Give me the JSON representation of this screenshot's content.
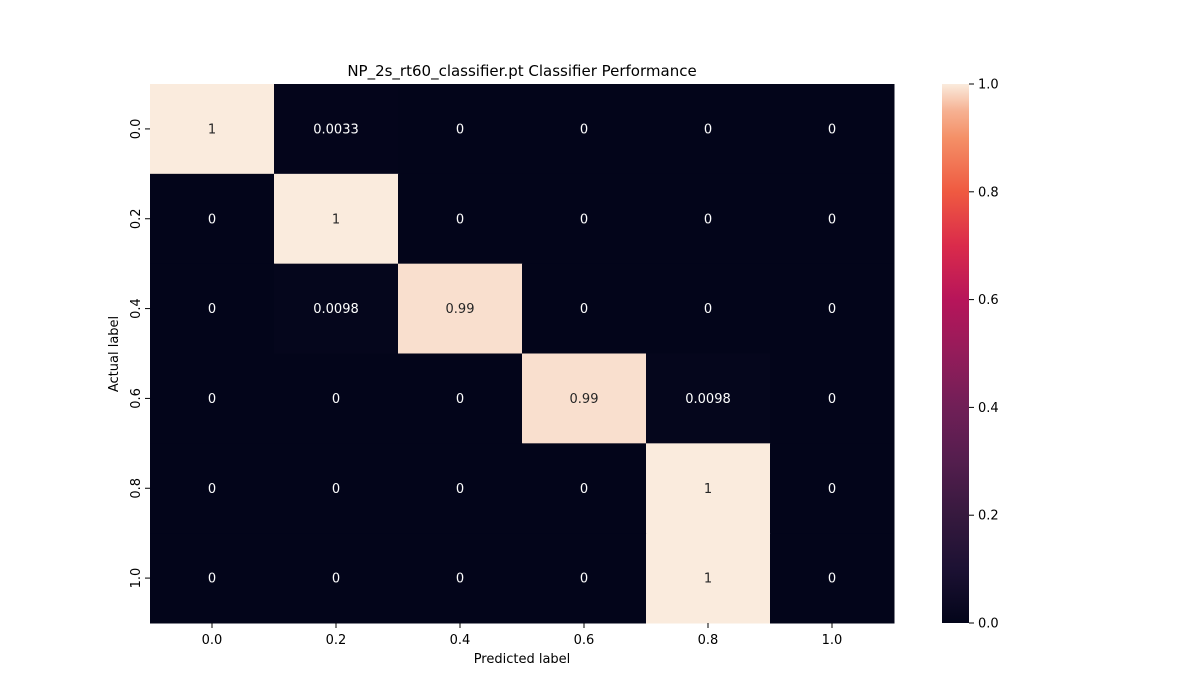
{
  "chart_data": {
    "type": "heatmap",
    "title": "NP_2s_rt60_classifier.pt Classifier Performance",
    "xlabel": "Predicted label",
    "ylabel": "Actual label",
    "x_categories": [
      "0.0",
      "0.2",
      "0.4",
      "0.6",
      "0.8",
      "1.0"
    ],
    "y_categories": [
      "0.0",
      "0.2",
      "0.4",
      "0.6",
      "0.8",
      "1.0"
    ],
    "values": [
      [
        1,
        0.0033,
        0,
        0,
        0,
        0
      ],
      [
        0,
        1,
        0,
        0,
        0,
        0
      ],
      [
        0,
        0.0098,
        0.99,
        0,
        0,
        0
      ],
      [
        0,
        0,
        0,
        0.99,
        0.0098,
        0
      ],
      [
        0,
        0,
        0,
        0,
        1,
        0
      ],
      [
        0,
        0,
        0,
        0,
        1,
        0
      ]
    ],
    "annotations": [
      [
        "1",
        "0.0033",
        "0",
        "0",
        "0",
        "0"
      ],
      [
        "0",
        "1",
        "0",
        "0",
        "0",
        "0"
      ],
      [
        "0",
        "0.0098",
        "0.99",
        "0",
        "0",
        "0"
      ],
      [
        "0",
        "0",
        "0",
        "0.99",
        "0.0098",
        "0"
      ],
      [
        "0",
        "0",
        "0",
        "0",
        "1",
        "0"
      ],
      [
        "0",
        "0",
        "0",
        "0",
        "1",
        "0"
      ]
    ],
    "colorbar": {
      "range": [
        0,
        1
      ],
      "ticks": [
        "0.0",
        "0.2",
        "0.4",
        "0.6",
        "0.8",
        "1.0"
      ],
      "colormap": "rocket"
    },
    "colors": {
      "low": "#03051a",
      "high": "#faebdd",
      "annotation_on_dark": "#ffffff",
      "annotation_on_light": "#262626"
    }
  }
}
